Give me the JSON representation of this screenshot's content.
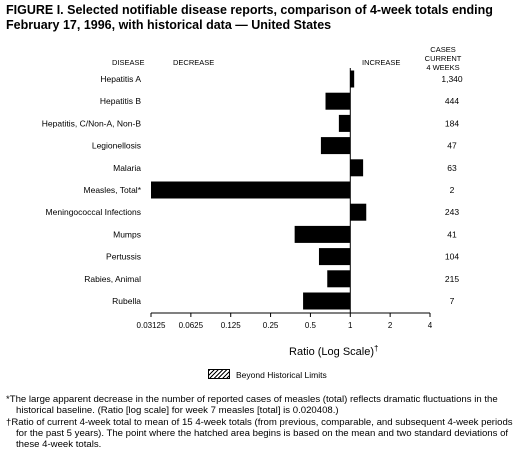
{
  "title_line1": "FIGURE I. Selected notifiable disease reports, comparison of 4-week totals ending",
  "title_line2": "February 17, 1996, with historical data — United States",
  "headers": {
    "disease": "DISEASE",
    "decrease": "DECREASE",
    "increase": "INCREASE",
    "cases_line1": "CASES CURRENT",
    "cases_line2": "4 WEEKS"
  },
  "chart_data": {
    "type": "bar",
    "orientation": "horizontal",
    "xscale": "log2",
    "xlim": [
      0.03125,
      4
    ],
    "xticks": [
      0.03125,
      0.0625,
      0.125,
      0.25,
      0.5,
      1,
      2,
      4
    ],
    "xtick_labels": [
      "0.03125",
      "0.0625",
      "0.125",
      "0.25",
      "0.5",
      "1",
      "2",
      "4"
    ],
    "xlabel": "Ratio (Log Scale)",
    "xlabel_mark": "†",
    "baseline": 1,
    "categories": [
      "Hepatitis A",
      "Hepatitis B",
      "Hepatitis, C/Non-A, Non-B",
      "Legionellosis",
      "Malaria",
      "Measles, Total*",
      "Meningococcal Infections",
      "Mumps",
      "Pertussis",
      "Rabies, Animal",
      "Rubella"
    ],
    "values": [
      1.07,
      0.65,
      0.82,
      0.6,
      1.25,
      0.03125,
      1.32,
      0.38,
      0.58,
      0.67,
      0.44
    ],
    "cases_current_4_weeks": [
      "1,340",
      "444",
      "184",
      "47",
      "63",
      "2",
      "243",
      "41",
      "104",
      "215",
      "7"
    ],
    "legend": "Beyond Historical Limits"
  },
  "footnotes": {
    "star": "*The large apparent decrease in the number of reported cases of measles (total) reflects dramatic fluctuations in the historical baseline. (Ratio [log scale] for week 7 measles [total] is 0.020408.)",
    "dagger": "†Ratio of current 4-week total to mean of 15 4-week totals (from previous, comparable, and subsequent 4-week periods for the past 5 years). The point where the hatched area begins is based on the mean and two standard deviations of these 4-week totals."
  },
  "colors": {
    "bar": "#000000",
    "text": "#000000",
    "background": "#ffffff"
  }
}
